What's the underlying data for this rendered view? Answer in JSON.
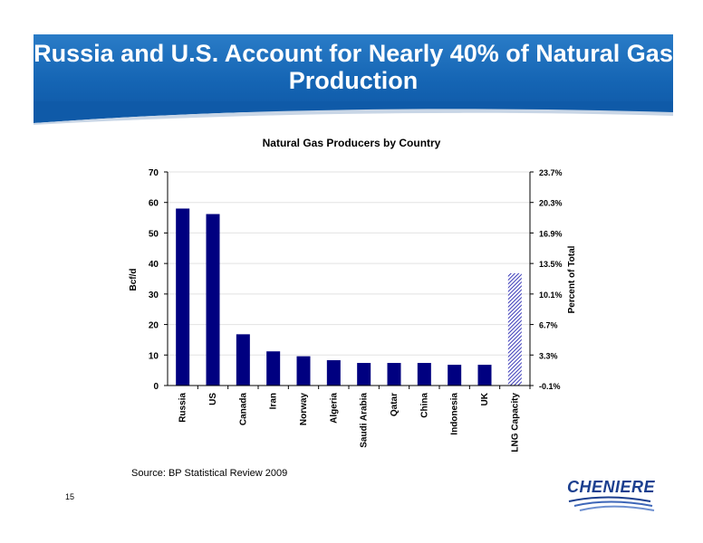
{
  "slide": {
    "title": "Russia and U.S. Account for Nearly 40% of Natural Gas Production",
    "source": "Source: BP Statistical Review 2009",
    "page_number": "15",
    "logo_text": "CHENIERE"
  },
  "colors": {
    "banner": "#1565b4",
    "bar": "#000080",
    "lng_bar": "#6a6adc"
  },
  "chart_data": {
    "type": "bar",
    "title": "Natural Gas Producers by Country",
    "ylabel": "Bcf/d",
    "y2label": "Percent of Total",
    "ylim": [
      0,
      70
    ],
    "yticks": [
      "0",
      "10",
      "20",
      "30",
      "40",
      "50",
      "60",
      "70"
    ],
    "y2ticks": [
      "-0.1%",
      "3.3%",
      "6.7%",
      "10.1%",
      "13.5%",
      "16.9%",
      "20.3%",
      "23.7%"
    ],
    "categories": [
      "Russia",
      "US",
      "Canada",
      "Iran",
      "Norway",
      "Algeria",
      "Saudi Arabia",
      "Qatar",
      "China",
      "Indonesia",
      "UK",
      "LNG Capacity"
    ],
    "values": [
      58,
      56.2,
      16.8,
      11.2,
      9.6,
      8.3,
      7.4,
      7.4,
      7.4,
      6.8,
      6.8,
      36.8
    ],
    "hatched": [
      false,
      false,
      false,
      false,
      false,
      false,
      false,
      false,
      false,
      false,
      false,
      true
    ],
    "grid": true
  }
}
